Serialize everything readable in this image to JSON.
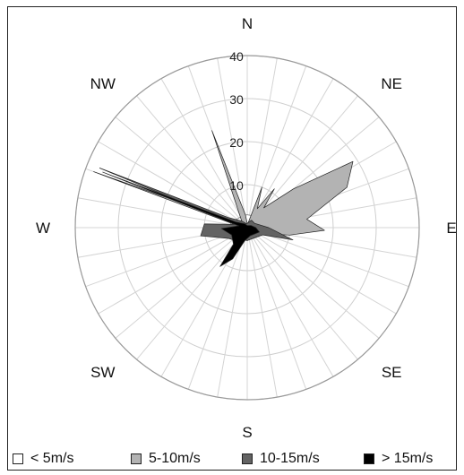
{
  "chart_data": {
    "type": "radar",
    "subtype": "wind-rose",
    "title": "",
    "direction_labels": [
      "N",
      "NE",
      "E",
      "SE",
      "S",
      "SW",
      "W",
      "NW"
    ],
    "radial_ticks": [
      10,
      20,
      30,
      40
    ],
    "rmax": 40,
    "num_spokes": 36,
    "grid": true,
    "legend_position": "bottom",
    "series": [
      {
        "name": "< 5m/s",
        "color": "#ffffff",
        "points": [
          [
            0,
            3
          ],
          [
            20,
            3
          ],
          [
            45,
            3
          ],
          [
            70,
            4
          ],
          [
            90,
            3
          ],
          [
            110,
            2
          ],
          [
            135,
            2
          ],
          [
            160,
            2
          ],
          [
            180,
            3
          ],
          [
            200,
            2
          ],
          [
            225,
            2
          ],
          [
            250,
            3
          ],
          [
            270,
            4
          ],
          [
            290,
            4
          ],
          [
            315,
            3
          ],
          [
            340,
            3
          ]
        ]
      },
      {
        "name": "5-10m/s",
        "color": "#b3b3b3",
        "points": [
          [
            0,
            1
          ],
          [
            10,
            1
          ],
          [
            20,
            10
          ],
          [
            28,
            5
          ],
          [
            35,
            11
          ],
          [
            40,
            6
          ],
          [
            50,
            14
          ],
          [
            58,
            29
          ],
          [
            68,
            25
          ],
          [
            82,
            14
          ],
          [
            92,
            18
          ],
          [
            100,
            10
          ],
          [
            110,
            4
          ],
          [
            130,
            1
          ],
          [
            160,
            1
          ],
          [
            180,
            1
          ],
          [
            200,
            1
          ],
          [
            220,
            1
          ],
          [
            250,
            1
          ],
          [
            270,
            1
          ],
          [
            290,
            38
          ],
          [
            300,
            2
          ],
          [
            320,
            2
          ],
          [
            340,
            24
          ],
          [
            352,
            3
          ]
        ]
      },
      {
        "name": "10-15m/s",
        "color": "#636363",
        "points": [
          [
            0,
            1
          ],
          [
            30,
            2
          ],
          [
            60,
            2
          ],
          [
            90,
            5
          ],
          [
            105,
            11
          ],
          [
            115,
            4
          ],
          [
            140,
            3
          ],
          [
            180,
            3
          ],
          [
            200,
            3
          ],
          [
            220,
            4
          ],
          [
            240,
            5
          ],
          [
            260,
            11
          ],
          [
            275,
            10
          ],
          [
            285,
            3
          ],
          [
            292,
            37
          ],
          [
            298,
            5
          ],
          [
            320,
            2
          ],
          [
            345,
            1
          ]
        ]
      },
      {
        "name": "> 15m/s",
        "color": "#000000",
        "points": [
          [
            0,
            0.5
          ],
          [
            60,
            1
          ],
          [
            90,
            2
          ],
          [
            110,
            3
          ],
          [
            160,
            2
          ],
          [
            190,
            3
          ],
          [
            205,
            8
          ],
          [
            215,
            11
          ],
          [
            220,
            5
          ],
          [
            245,
            4
          ],
          [
            268,
            6
          ],
          [
            282,
            2
          ],
          [
            291,
            36
          ],
          [
            296,
            3
          ],
          [
            330,
            1
          ]
        ]
      }
    ]
  }
}
